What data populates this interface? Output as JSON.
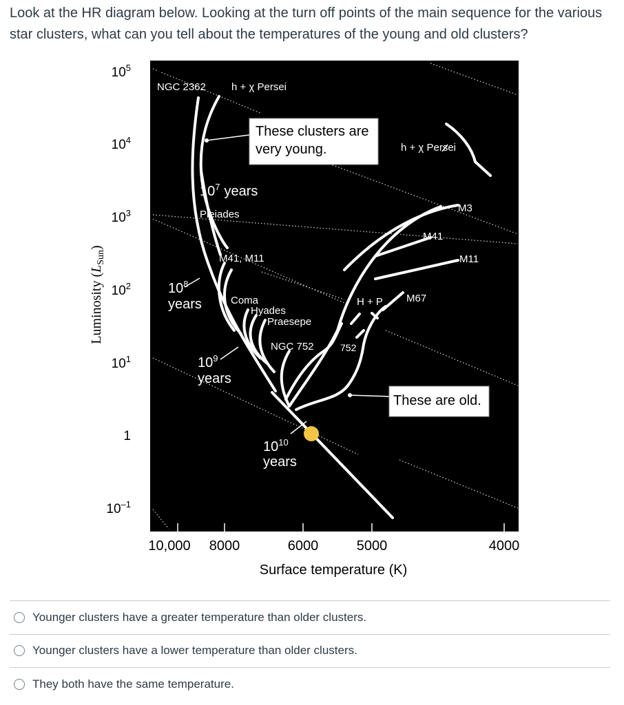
{
  "question": {
    "text": "Look at the HR diagram below. Looking at the turn off points of the main sequence for the various star clusters, what can you tell about the temperatures of the young and old clusters?"
  },
  "diagram": {
    "y_axis": {
      "label_prefix": "Luminosity (",
      "label_var": "L",
      "label_sub": "Sun",
      "label_suffix": ")",
      "ticks": [
        {
          "base": "10",
          "exp": "5"
        },
        {
          "base": "10",
          "exp": "4"
        },
        {
          "base": "10",
          "exp": "3"
        },
        {
          "base": "10",
          "exp": "2"
        },
        {
          "base": "10",
          "exp": "1"
        },
        {
          "base": "1",
          "exp": ""
        },
        {
          "base": "10",
          "exp": "–1"
        }
      ]
    },
    "x_axis": {
      "label": "Surface temperature (K)",
      "ticks": [
        "10,000",
        "8000",
        "6000",
        "5000",
        "4000"
      ]
    },
    "cluster_labels": {
      "ngc2362": "NGC 2362",
      "hx_persei_top": "h + χ Persei",
      "hx_persei_right": "h + χ Persei",
      "pleiades": "Pleiades",
      "m41_m11": "M41, M11",
      "coma": "Coma",
      "hyades": "Hyades",
      "praesepe": "Praesepe",
      "ngc752": "NGC 752",
      "ngc752_short": "752",
      "hp": "H + P",
      "m67": "M67",
      "m3": "M3",
      "m41": "M41",
      "m11": "M11"
    },
    "age_labels": {
      "e7_base": "10",
      "e7_exp": "7",
      "e7_unit": "years",
      "e8_base": "10",
      "e8_exp": "8",
      "e8_unit": "years",
      "e9_base": "10",
      "e9_exp": "9",
      "e9_unit": "years",
      "e10_base": "10",
      "e10_exp": "10",
      "e10_unit": "years"
    },
    "callouts": {
      "young_line1": "These clusters are",
      "young_line2": "very young.",
      "old": "These are old."
    },
    "colors": {
      "background": "#000000",
      "curves": "#ffffff",
      "sun": "#f4c542",
      "callout_bg": "#ffffff",
      "callout_text": "#000000"
    }
  },
  "answers": [
    {
      "label": "Younger clusters have a greater temperature than older clusters."
    },
    {
      "label": "Younger clusters have a lower temperature than older clusters."
    },
    {
      "label": "They both have the same temperature."
    }
  ]
}
